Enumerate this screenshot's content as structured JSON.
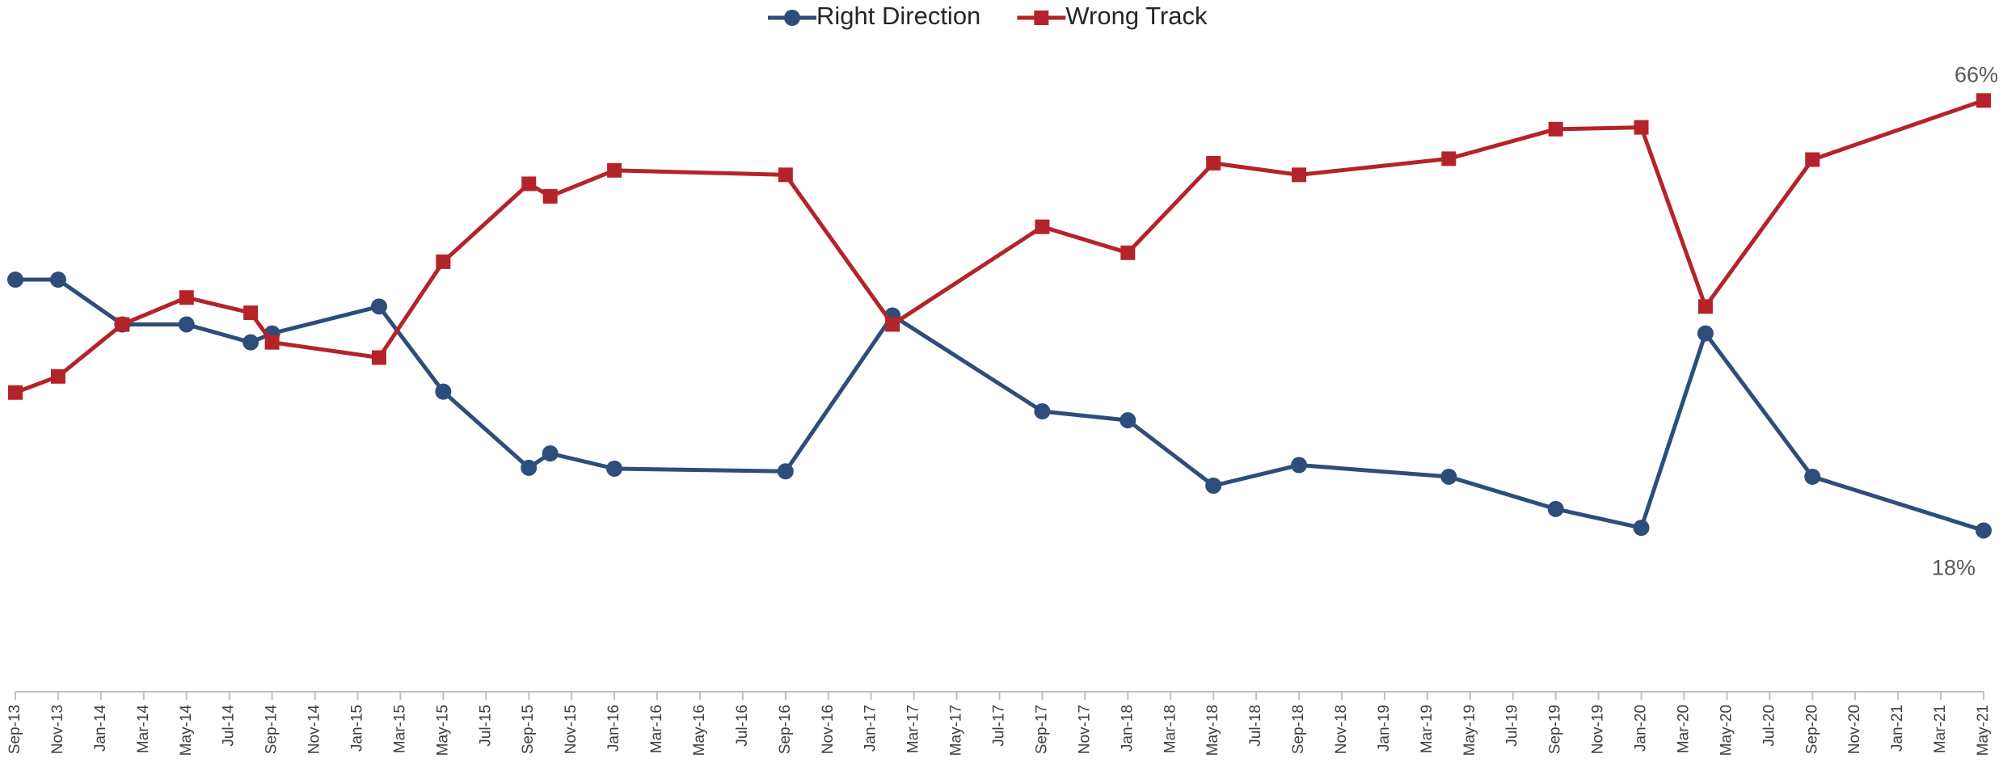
{
  "chart_data": {
    "type": "line",
    "x": [
      "Sep-13",
      "Nov-13",
      "Feb-14",
      "May-14",
      "Aug-14",
      "Sep-14",
      "Feb-15",
      "May-15",
      "Sep-15",
      "Oct-15",
      "Jan-16",
      "Sep-16",
      "Feb-17",
      "Sep-17",
      "Jan-18",
      "May-18",
      "Sep-18",
      "Apr-19",
      "Sep-19",
      "Jan-20",
      "Apr-20",
      "Sep-20",
      "May-21"
    ],
    "series": [
      {
        "name": "Right Direction",
        "color": "#2e4d7b",
        "marker": "circle",
        "values": [
          46,
          46,
          41,
          41,
          39,
          40,
          43,
          33.5,
          25,
          26.6,
          24.9,
          24.6,
          42,
          31.3,
          30.3,
          23,
          25.3,
          24,
          20.4,
          18.3,
          40,
          24,
          18
        ],
        "value_labels": [
          null,
          null,
          null,
          null,
          null,
          null,
          null,
          null,
          null,
          null,
          null,
          null,
          null,
          null,
          null,
          null,
          null,
          null,
          null,
          null,
          null,
          null,
          "18%"
        ]
      },
      {
        "name": "Wrong Track",
        "color": "#b5232a",
        "marker": "square",
        "values": [
          33.4,
          35.2,
          41,
          44,
          42.3,
          39,
          37.3,
          48,
          56.7,
          55.3,
          58.2,
          57.7,
          41,
          51.9,
          49,
          59,
          57.7,
          59.5,
          62.8,
          63,
          43,
          59.4,
          66
        ],
        "value_labels": [
          null,
          null,
          null,
          null,
          null,
          null,
          null,
          null,
          null,
          null,
          null,
          null,
          null,
          null,
          null,
          null,
          null,
          null,
          null,
          null,
          null,
          null,
          "66%"
        ]
      }
    ],
    "xlim": [
      "Sep-13",
      "May-21"
    ],
    "xticks": [
      "Sep-13",
      "Nov-13",
      "Jan-14",
      "Mar-14",
      "May-14",
      "Jul-14",
      "Sep-14",
      "Nov-14",
      "Jan-15",
      "Mar-15",
      "May-15",
      "Jul-15",
      "Sep-15",
      "Nov-15",
      "Jan-16",
      "Mar-16",
      "May-16",
      "Jul-16",
      "Sep-16",
      "Nov-16",
      "Jan-17",
      "Mar-17",
      "May-17",
      "Jul-17",
      "Sep-17",
      "Nov-17",
      "Jan-18",
      "Mar-18",
      "May-18",
      "Jul-18",
      "Sep-18",
      "Nov-18",
      "Jan-19",
      "Mar-19",
      "May-19",
      "Jul-19",
      "Sep-19",
      "Nov-19",
      "Jan-20",
      "Mar-20",
      "May-20",
      "Jul-20",
      "Sep-20",
      "Nov-20",
      "Jan-21",
      "Mar-21",
      "May-21"
    ],
    "ylim": [
      0,
      70
    ],
    "legend": "top"
  }
}
